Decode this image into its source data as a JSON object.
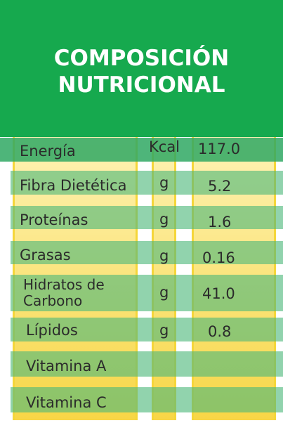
{
  "title": {
    "line1": "COMPOSICIÓN",
    "line2": "NUTRICIONAL"
  },
  "colors": {
    "header": "#16a94e",
    "band": "#4db87a",
    "column": "#f5d63a"
  },
  "rows": [
    {
      "name": "Energía",
      "unit": "Kcal",
      "value": "117.0"
    },
    {
      "name": "Fibra Dietética",
      "unit": "g",
      "value": "5.2"
    },
    {
      "name": "Proteínas",
      "unit": "g",
      "value": "1.6"
    },
    {
      "name": "Grasas",
      "unit": "g",
      "value": "0.16"
    },
    {
      "name_line1": "Hidratos de",
      "name_line2": "Carbono",
      "unit": "g",
      "value": "41.0"
    },
    {
      "name": "Lípidos",
      "unit": "g",
      "value": "0.8"
    },
    {
      "name": "Vitamina A",
      "unit": "",
      "value": ""
    },
    {
      "name": "Vitamina C",
      "unit": "",
      "value": ""
    }
  ]
}
